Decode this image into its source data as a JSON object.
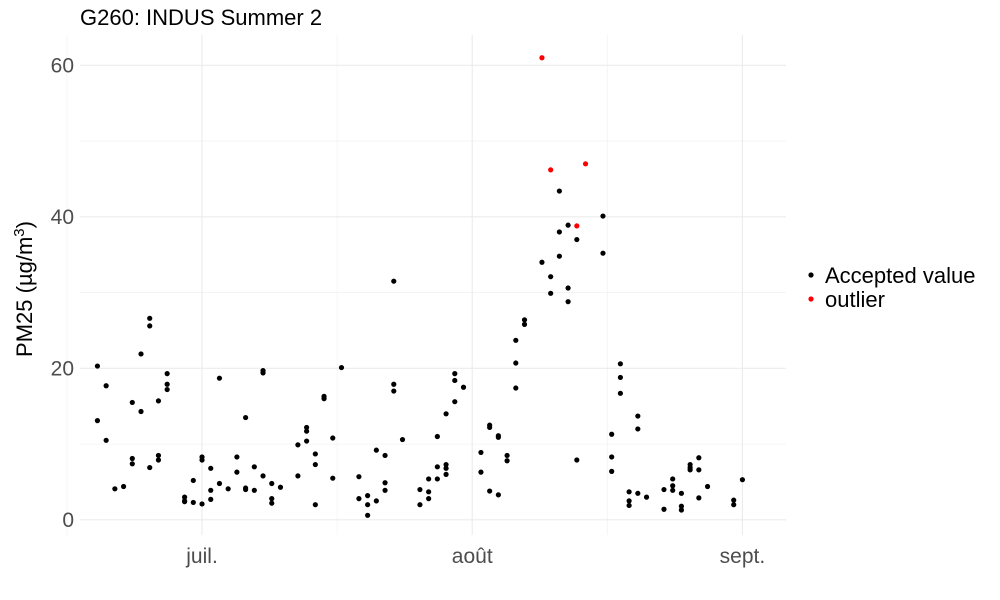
{
  "chart_data": {
    "type": "scatter",
    "title": "G260: INDUS Summer 2",
    "xlabel": "",
    "ylabel": "PM25",
    "ylabel_unit": "(µg/m",
    "ylabel_sup": "3",
    "ylabel_close": ")",
    "xlim": [
      "2025-06-17",
      "2025-09-06"
    ],
    "ylim": [
      -2,
      64
    ],
    "x_ticks": [
      {
        "date": "2025-07-01",
        "label": "juil."
      },
      {
        "date": "2025-08-01",
        "label": "août"
      },
      {
        "date": "2025-09-01",
        "label": "sept."
      }
    ],
    "y_ticks": [
      0,
      20,
      40,
      60
    ],
    "grid": true,
    "legend_position": "right",
    "series": [
      {
        "name": "Accepted value",
        "color": "#000000",
        "points": [
          {
            "x": "2025-06-19",
            "y": 13.1
          },
          {
            "x": "2025-06-19",
            "y": 20.3
          },
          {
            "x": "2025-06-20",
            "y": 17.7
          },
          {
            "x": "2025-06-20",
            "y": 10.5
          },
          {
            "x": "2025-06-21",
            "y": 4.1
          },
          {
            "x": "2025-06-22",
            "y": 4.4
          },
          {
            "x": "2025-06-23",
            "y": 15.5
          },
          {
            "x": "2025-06-23",
            "y": 7.4
          },
          {
            "x": "2025-06-23",
            "y": 8.1
          },
          {
            "x": "2025-06-24",
            "y": 14.3
          },
          {
            "x": "2025-06-24",
            "y": 21.9
          },
          {
            "x": "2025-06-25",
            "y": 25.6
          },
          {
            "x": "2025-06-25",
            "y": 26.6
          },
          {
            "x": "2025-06-25",
            "y": 6.9
          },
          {
            "x": "2025-06-26",
            "y": 8.5
          },
          {
            "x": "2025-06-26",
            "y": 7.9
          },
          {
            "x": "2025-06-26",
            "y": 15.7
          },
          {
            "x": "2025-06-27",
            "y": 17.9
          },
          {
            "x": "2025-06-27",
            "y": 17.2
          },
          {
            "x": "2025-06-27",
            "y": 19.3
          },
          {
            "x": "2025-06-29",
            "y": 2.4
          },
          {
            "x": "2025-06-29",
            "y": 3.0
          },
          {
            "x": "2025-06-29",
            "y": 2.5
          },
          {
            "x": "2025-06-30",
            "y": 2.3
          },
          {
            "x": "2025-06-30",
            "y": 5.2
          },
          {
            "x": "2025-07-01",
            "y": 7.9
          },
          {
            "x": "2025-07-01",
            "y": 8.3
          },
          {
            "x": "2025-07-01",
            "y": 2.1
          },
          {
            "x": "2025-07-02",
            "y": 2.7
          },
          {
            "x": "2025-07-02",
            "y": 6.8
          },
          {
            "x": "2025-07-02",
            "y": 3.9
          },
          {
            "x": "2025-07-03",
            "y": 4.8
          },
          {
            "x": "2025-07-03",
            "y": 18.7
          },
          {
            "x": "2025-07-04",
            "y": 4.1
          },
          {
            "x": "2025-07-05",
            "y": 6.3
          },
          {
            "x": "2025-07-05",
            "y": 8.3
          },
          {
            "x": "2025-07-06",
            "y": 4.2
          },
          {
            "x": "2025-07-06",
            "y": 13.5
          },
          {
            "x": "2025-07-06",
            "y": 4.0
          },
          {
            "x": "2025-07-07",
            "y": 3.9
          },
          {
            "x": "2025-07-07",
            "y": 7.0
          },
          {
            "x": "2025-07-08",
            "y": 19.7
          },
          {
            "x": "2025-07-08",
            "y": 19.4
          },
          {
            "x": "2025-07-08",
            "y": 5.8
          },
          {
            "x": "2025-07-09",
            "y": 2.8
          },
          {
            "x": "2025-07-09",
            "y": 4.8
          },
          {
            "x": "2025-07-09",
            "y": 2.2
          },
          {
            "x": "2025-07-10",
            "y": 4.3
          },
          {
            "x": "2025-07-12",
            "y": 5.8
          },
          {
            "x": "2025-07-12",
            "y": 9.9
          },
          {
            "x": "2025-07-13",
            "y": 12.2
          },
          {
            "x": "2025-07-13",
            "y": 10.4
          },
          {
            "x": "2025-07-13",
            "y": 11.7
          },
          {
            "x": "2025-07-14",
            "y": 8.7
          },
          {
            "x": "2025-07-14",
            "y": 7.3
          },
          {
            "x": "2025-07-14",
            "y": 2.0
          },
          {
            "x": "2025-07-15",
            "y": 16.0
          },
          {
            "x": "2025-07-15",
            "y": 16.3
          },
          {
            "x": "2025-07-16",
            "y": 5.5
          },
          {
            "x": "2025-07-16",
            "y": 10.8
          },
          {
            "x": "2025-07-17",
            "y": 20.1
          },
          {
            "x": "2025-07-19",
            "y": 5.7
          },
          {
            "x": "2025-07-19",
            "y": 2.8
          },
          {
            "x": "2025-07-20",
            "y": 3.2
          },
          {
            "x": "2025-07-20",
            "y": 0.6
          },
          {
            "x": "2025-07-20",
            "y": 2.0
          },
          {
            "x": "2025-07-21",
            "y": 9.2
          },
          {
            "x": "2025-07-21",
            "y": 2.5
          },
          {
            "x": "2025-07-22",
            "y": 3.9
          },
          {
            "x": "2025-07-22",
            "y": 4.9
          },
          {
            "x": "2025-07-22",
            "y": 8.5
          },
          {
            "x": "2025-07-23",
            "y": 31.5
          },
          {
            "x": "2025-07-23",
            "y": 17.9
          },
          {
            "x": "2025-07-23",
            "y": 17.0
          },
          {
            "x": "2025-07-24",
            "y": 10.6
          },
          {
            "x": "2025-07-26",
            "y": 2.0
          },
          {
            "x": "2025-07-26",
            "y": 4.0
          },
          {
            "x": "2025-07-27",
            "y": 2.8
          },
          {
            "x": "2025-07-27",
            "y": 3.7
          },
          {
            "x": "2025-07-27",
            "y": 5.4
          },
          {
            "x": "2025-07-28",
            "y": 5.4
          },
          {
            "x": "2025-07-28",
            "y": 7.0
          },
          {
            "x": "2025-07-28",
            "y": 11.0
          },
          {
            "x": "2025-07-29",
            "y": 6.0
          },
          {
            "x": "2025-07-29",
            "y": 6.8
          },
          {
            "x": "2025-07-29",
            "y": 7.3
          },
          {
            "x": "2025-07-29",
            "y": 14.0
          },
          {
            "x": "2025-07-30",
            "y": 19.3
          },
          {
            "x": "2025-07-30",
            "y": 18.4
          },
          {
            "x": "2025-07-30",
            "y": 15.6
          },
          {
            "x": "2025-07-31",
            "y": 17.5
          },
          {
            "x": "2025-08-02",
            "y": 6.3
          },
          {
            "x": "2025-08-02",
            "y": 8.9
          },
          {
            "x": "2025-08-03",
            "y": 12.5
          },
          {
            "x": "2025-08-03",
            "y": 12.2
          },
          {
            "x": "2025-08-03",
            "y": 3.8
          },
          {
            "x": "2025-08-04",
            "y": 11.1
          },
          {
            "x": "2025-08-04",
            "y": 10.9
          },
          {
            "x": "2025-08-04",
            "y": 3.3
          },
          {
            "x": "2025-08-05",
            "y": 8.5
          },
          {
            "x": "2025-08-05",
            "y": 7.8
          },
          {
            "x": "2025-08-06",
            "y": 17.4
          },
          {
            "x": "2025-08-06",
            "y": 20.7
          },
          {
            "x": "2025-08-06",
            "y": 23.7
          },
          {
            "x": "2025-08-07",
            "y": 26.4
          },
          {
            "x": "2025-08-07",
            "y": 25.8
          },
          {
            "x": "2025-08-09",
            "y": 34.0
          },
          {
            "x": "2025-08-10",
            "y": 32.1
          },
          {
            "x": "2025-08-10",
            "y": 29.9
          },
          {
            "x": "2025-08-11",
            "y": 38.0
          },
          {
            "x": "2025-08-11",
            "y": 43.4
          },
          {
            "x": "2025-08-11",
            "y": 34.8
          },
          {
            "x": "2025-08-12",
            "y": 30.6
          },
          {
            "x": "2025-08-12",
            "y": 28.8
          },
          {
            "x": "2025-08-12",
            "y": 38.9
          },
          {
            "x": "2025-08-13",
            "y": 37.0
          },
          {
            "x": "2025-08-13",
            "y": 7.9
          },
          {
            "x": "2025-08-16",
            "y": 40.1
          },
          {
            "x": "2025-08-16",
            "y": 35.2
          },
          {
            "x": "2025-08-17",
            "y": 8.3
          },
          {
            "x": "2025-08-17",
            "y": 6.4
          },
          {
            "x": "2025-08-17",
            "y": 11.3
          },
          {
            "x": "2025-08-18",
            "y": 20.6
          },
          {
            "x": "2025-08-18",
            "y": 18.8
          },
          {
            "x": "2025-08-18",
            "y": 16.7
          },
          {
            "x": "2025-08-19",
            "y": 1.9
          },
          {
            "x": "2025-08-19",
            "y": 2.5
          },
          {
            "x": "2025-08-19",
            "y": 3.7
          },
          {
            "x": "2025-08-20",
            "y": 13.7
          },
          {
            "x": "2025-08-20",
            "y": 12.0
          },
          {
            "x": "2025-08-20",
            "y": 3.5
          },
          {
            "x": "2025-08-21",
            "y": 3.0
          },
          {
            "x": "2025-08-23",
            "y": 1.4
          },
          {
            "x": "2025-08-23",
            "y": 4.0
          },
          {
            "x": "2025-08-24",
            "y": 4.5
          },
          {
            "x": "2025-08-24",
            "y": 3.9
          },
          {
            "x": "2025-08-24",
            "y": 5.4
          },
          {
            "x": "2025-08-25",
            "y": 1.8
          },
          {
            "x": "2025-08-25",
            "y": 1.3
          },
          {
            "x": "2025-08-25",
            "y": 3.5
          },
          {
            "x": "2025-08-26",
            "y": 7.3
          },
          {
            "x": "2025-08-26",
            "y": 6.6
          },
          {
            "x": "2025-08-26",
            "y": 6.9
          },
          {
            "x": "2025-08-27",
            "y": 6.6
          },
          {
            "x": "2025-08-27",
            "y": 2.9
          },
          {
            "x": "2025-08-27",
            "y": 8.2
          },
          {
            "x": "2025-08-28",
            "y": 4.4
          },
          {
            "x": "2025-08-31",
            "y": 2.0
          },
          {
            "x": "2025-08-31",
            "y": 2.6
          },
          {
            "x": "2025-09-01",
            "y": 5.3
          }
        ]
      },
      {
        "name": "outlier",
        "color": "#ff0000",
        "points": [
          {
            "x": "2025-08-09",
            "y": 61.0
          },
          {
            "x": "2025-08-10",
            "y": 46.2
          },
          {
            "x": "2025-08-13",
            "y": 38.8
          },
          {
            "x": "2025-08-14",
            "y": 47.0
          }
        ]
      }
    ]
  }
}
